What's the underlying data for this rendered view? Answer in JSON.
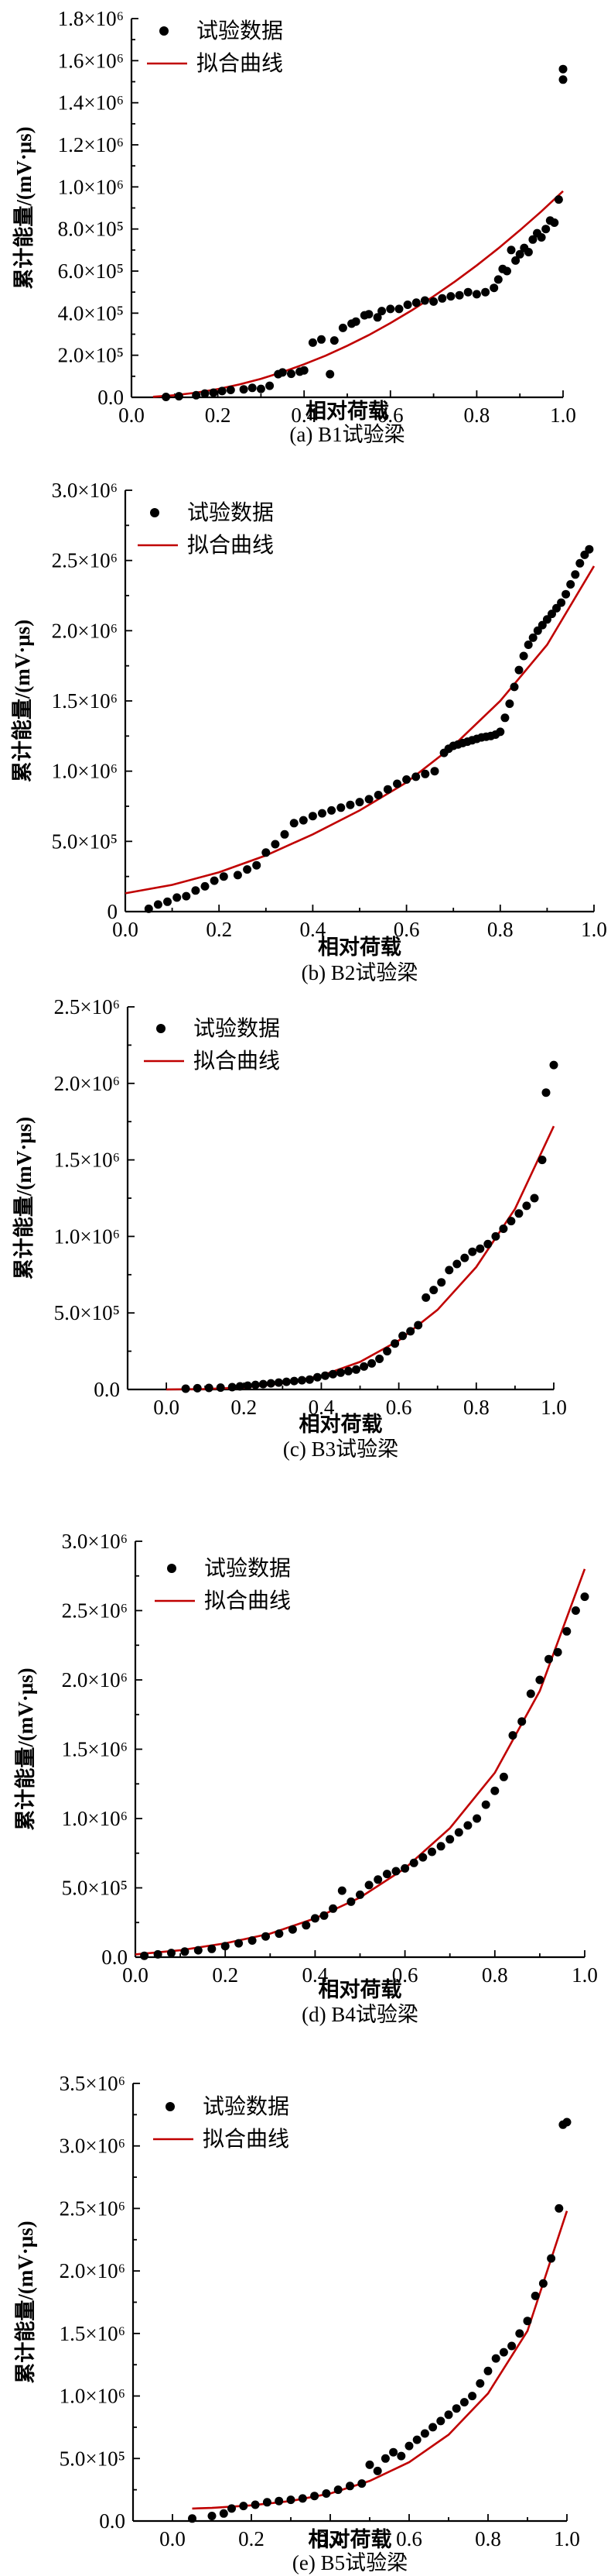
{
  "colors": {
    "points": "#000000",
    "fit": "#c00000",
    "axis": "#000000"
  },
  "chart_data": [
    {
      "type": "scatter",
      "caption": "(a) B1试验梁",
      "xlabel": "相对荷载",
      "ylabel": "累计能量/(mV·μs)",
      "xlim": [
        0.0,
        1.0
      ],
      "ylim": [
        0,
        1800000
      ],
      "xticks": [
        0.0,
        0.2,
        0.4,
        0.6,
        0.8,
        1.0
      ],
      "xtick_labels": [
        "0.0",
        "0.2",
        "0.4",
        "0.6",
        "0.8",
        "1.0"
      ],
      "yticks": [
        0,
        200000,
        400000,
        600000,
        800000,
        1000000,
        1200000,
        1400000,
        1600000,
        1800000
      ],
      "ytick_labels": [
        "0.0",
        "2.0×10⁵",
        "4.0×10⁵",
        "6.0×10⁵",
        "8.0×10⁵",
        "1.0×10⁶",
        "1.2×10⁶",
        "1.4×10⁶",
        "1.6×10⁶",
        "1.8×10⁶"
      ],
      "legend": [
        "试验数据",
        "拟合曲线"
      ],
      "legend_position": "top-left",
      "series": [
        {
          "kind": "points",
          "x": [
            0.08,
            0.11,
            0.15,
            0.17,
            0.19,
            0.21,
            0.23,
            0.26,
            0.28,
            0.3,
            0.32,
            0.34,
            0.35,
            0.37,
            0.39,
            0.4,
            0.42,
            0.44,
            0.46,
            0.47,
            0.49,
            0.51,
            0.52,
            0.54,
            0.55,
            0.57,
            0.58,
            0.6,
            0.62,
            0.64,
            0.66,
            0.68,
            0.7,
            0.72,
            0.74,
            0.76,
            0.78,
            0.8,
            0.82,
            0.84,
            0.85,
            0.86,
            0.87,
            0.88,
            0.89,
            0.9,
            0.91,
            0.92,
            0.93,
            0.94,
            0.95,
            0.96,
            0.97,
            0.98,
            0.99,
            1.0,
            1.0
          ],
          "y": [
            2000,
            5000,
            10000,
            18000,
            22000,
            30000,
            35000,
            38000,
            45000,
            40000,
            55000,
            110000,
            118000,
            112000,
            122000,
            128000,
            260000,
            275000,
            110000,
            270000,
            330000,
            350000,
            360000,
            390000,
            395000,
            380000,
            410000,
            420000,
            420000,
            440000,
            450000,
            460000,
            455000,
            470000,
            480000,
            485000,
            500000,
            490000,
            500000,
            520000,
            560000,
            610000,
            600000,
            700000,
            650000,
            680000,
            710000,
            690000,
            750000,
            780000,
            760000,
            800000,
            840000,
            830000,
            940000,
            1510000,
            1560000
          ]
        },
        {
          "kind": "fit",
          "x": [
            0.05,
            0.1,
            0.15,
            0.2,
            0.25,
            0.3,
            0.35,
            0.4,
            0.45,
            0.5,
            0.55,
            0.6,
            0.65,
            0.7,
            0.75,
            0.8,
            0.85,
            0.9,
            0.95,
            1.0
          ],
          "y": [
            2400,
            9800,
            22000,
            39000,
            61000,
            88000,
            120000,
            157000,
            198000,
            245000,
            296000,
            353000,
            414000,
            480000,
            551000,
            627000,
            708000,
            794000,
            884000,
            980000
          ]
        }
      ]
    },
    {
      "type": "scatter",
      "caption": "(b) B2试验梁",
      "xlabel": "相对荷载",
      "ylabel": "累计能量/(mV·μs)",
      "xlim": [
        0.0,
        1.0
      ],
      "ylim": [
        0,
        3000000
      ],
      "xticks": [
        0.0,
        0.2,
        0.4,
        0.6,
        0.8,
        1.0
      ],
      "xtick_labels": [
        "0.0",
        "0.2",
        "0.4",
        "0.6",
        "0.8",
        "1.0"
      ],
      "yticks": [
        0,
        500000,
        1000000,
        1500000,
        2000000,
        2500000,
        3000000
      ],
      "ytick_labels": [
        "0",
        "5.0×10⁵",
        "1.0×10⁶",
        "1.5×10⁶",
        "2.0×10⁶",
        "2.5×10⁶",
        "3.0×10⁶"
      ],
      "legend": [
        "试验数据",
        "拟合曲线"
      ],
      "legend_position": "top-left",
      "series": [
        {
          "kind": "points",
          "x": [
            0.05,
            0.07,
            0.09,
            0.11,
            0.13,
            0.15,
            0.17,
            0.19,
            0.21,
            0.24,
            0.26,
            0.28,
            0.3,
            0.32,
            0.34,
            0.36,
            0.38,
            0.4,
            0.42,
            0.44,
            0.46,
            0.48,
            0.5,
            0.52,
            0.54,
            0.56,
            0.58,
            0.6,
            0.62,
            0.64,
            0.66,
            0.68,
            0.69,
            0.7,
            0.71,
            0.72,
            0.73,
            0.74,
            0.75,
            0.76,
            0.77,
            0.78,
            0.79,
            0.8,
            0.81,
            0.82,
            0.83,
            0.84,
            0.85,
            0.86,
            0.87,
            0.88,
            0.89,
            0.9,
            0.91,
            0.92,
            0.93,
            0.94,
            0.95,
            0.96,
            0.97,
            0.98,
            0.99
          ],
          "y": [
            20000,
            50000,
            70000,
            100000,
            110000,
            150000,
            180000,
            220000,
            250000,
            260000,
            300000,
            330000,
            420000,
            480000,
            550000,
            630000,
            650000,
            680000,
            700000,
            720000,
            740000,
            760000,
            780000,
            800000,
            830000,
            870000,
            910000,
            940000,
            960000,
            980000,
            1000000,
            1130000,
            1160000,
            1180000,
            1190000,
            1200000,
            1210000,
            1220000,
            1230000,
            1240000,
            1245000,
            1250000,
            1260000,
            1280000,
            1380000,
            1480000,
            1600000,
            1720000,
            1820000,
            1900000,
            1950000,
            2000000,
            2040000,
            2080000,
            2120000,
            2160000,
            2200000,
            2260000,
            2330000,
            2400000,
            2480000,
            2540000,
            2580000
          ]
        },
        {
          "kind": "fit",
          "x": [
            0.0,
            0.1,
            0.2,
            0.3,
            0.4,
            0.5,
            0.6,
            0.7,
            0.8,
            0.9,
            1.0
          ],
          "y": [
            130000,
            190000,
            280000,
            400000,
            550000,
            720000,
            920000,
            1180000,
            1500000,
            1900000,
            2460000
          ]
        }
      ]
    },
    {
      "type": "scatter",
      "caption": "(c) B3试验梁",
      "xlabel": "相对荷载",
      "ylabel": "累计能量/(mV·μs)",
      "xlim": [
        -0.1,
        1.0
      ],
      "ylim": [
        0,
        2500000
      ],
      "xticks": [
        0.0,
        0.2,
        0.4,
        0.6,
        0.8,
        1.0
      ],
      "xtick_labels": [
        "0.0",
        "0.2",
        "0.4",
        "0.6",
        "0.8",
        "1.0"
      ],
      "yticks": [
        0,
        500000,
        1000000,
        1500000,
        2000000,
        2500000
      ],
      "ytick_labels": [
        "0.0",
        "5.0×10⁵",
        "1.0×10⁶",
        "1.5×10⁶",
        "2.0×10⁶",
        "2.5×10⁶"
      ],
      "legend": [
        "试验数据",
        "拟合曲线"
      ],
      "legend_position": "top-left",
      "series": [
        {
          "kind": "points",
          "x": [
            0.05,
            0.08,
            0.11,
            0.14,
            0.17,
            0.19,
            0.21,
            0.23,
            0.25,
            0.27,
            0.29,
            0.31,
            0.33,
            0.35,
            0.37,
            0.39,
            0.41,
            0.43,
            0.45,
            0.47,
            0.49,
            0.51,
            0.53,
            0.55,
            0.57,
            0.59,
            0.61,
            0.63,
            0.65,
            0.67,
            0.69,
            0.71,
            0.73,
            0.75,
            0.77,
            0.79,
            0.81,
            0.83,
            0.85,
            0.87,
            0.89,
            0.91,
            0.93,
            0.95,
            0.97,
            0.98,
            1.0
          ],
          "y": [
            5000,
            8000,
            10000,
            12000,
            15000,
            20000,
            25000,
            30000,
            35000,
            40000,
            45000,
            50000,
            55000,
            60000,
            65000,
            80000,
            90000,
            100000,
            110000,
            120000,
            130000,
            150000,
            170000,
            200000,
            250000,
            300000,
            350000,
            380000,
            420000,
            600000,
            650000,
            700000,
            780000,
            820000,
            860000,
            900000,
            920000,
            950000,
            1000000,
            1050000,
            1100000,
            1150000,
            1200000,
            1250000,
            1500000,
            1940000,
            2120000
          ]
        },
        {
          "kind": "fit",
          "x": [
            0.0,
            0.1,
            0.2,
            0.3,
            0.4,
            0.5,
            0.6,
            0.7,
            0.8,
            0.9,
            1.0
          ],
          "y": [
            0,
            3000,
            12000,
            40000,
            90000,
            180000,
            320000,
            520000,
            800000,
            1180000,
            1720000
          ]
        }
      ]
    },
    {
      "type": "scatter",
      "caption": "(d) B4试验梁",
      "xlabel": "相对荷载",
      "ylabel": "累计能量/(mV·μs)",
      "xlim": [
        0.0,
        1.0
      ],
      "ylim": [
        0,
        3000000
      ],
      "xticks": [
        0.0,
        0.2,
        0.4,
        0.6,
        0.8,
        1.0
      ],
      "xtick_labels": [
        "0.0",
        "0.2",
        "0.4",
        "0.6",
        "0.8",
        "1.0"
      ],
      "yticks": [
        0,
        500000,
        1000000,
        1500000,
        2000000,
        2500000,
        3000000
      ],
      "ytick_labels": [
        "0.0",
        "5.0×10⁵",
        "1.0×10⁶",
        "1.5×10⁶",
        "2.0×10⁶",
        "2.5×10⁶",
        "3.0×10⁶"
      ],
      "legend": [
        "试验数据",
        "拟合曲线"
      ],
      "legend_position": "top-left",
      "series": [
        {
          "kind": "points",
          "x": [
            0.02,
            0.05,
            0.08,
            0.11,
            0.14,
            0.17,
            0.2,
            0.23,
            0.26,
            0.29,
            0.32,
            0.35,
            0.38,
            0.4,
            0.42,
            0.44,
            0.46,
            0.48,
            0.5,
            0.52,
            0.54,
            0.56,
            0.58,
            0.6,
            0.62,
            0.64,
            0.66,
            0.68,
            0.7,
            0.72,
            0.74,
            0.76,
            0.78,
            0.8,
            0.82,
            0.84,
            0.86,
            0.88,
            0.9,
            0.92,
            0.94,
            0.96,
            0.98,
            1.0
          ],
          "y": [
            10000,
            20000,
            30000,
            40000,
            50000,
            60000,
            80000,
            100000,
            120000,
            150000,
            170000,
            200000,
            230000,
            280000,
            300000,
            350000,
            480000,
            400000,
            450000,
            520000,
            560000,
            600000,
            620000,
            640000,
            680000,
            720000,
            760000,
            800000,
            850000,
            900000,
            950000,
            1000000,
            1100000,
            1200000,
            1300000,
            1600000,
            1700000,
            1900000,
            2000000,
            2150000,
            2200000,
            2350000,
            2500000,
            2600000
          ]
        },
        {
          "kind": "fit",
          "x": [
            0.0,
            0.1,
            0.2,
            0.3,
            0.4,
            0.5,
            0.6,
            0.7,
            0.8,
            0.9,
            1.0
          ],
          "y": [
            20000,
            50000,
            100000,
            170000,
            280000,
            430000,
            640000,
            930000,
            1330000,
            1920000,
            2800000
          ]
        }
      ]
    },
    {
      "type": "scatter",
      "caption": "(e) B5试验梁",
      "xlabel": "相对荷载",
      "ylabel": "累计能量/(mV·μs)",
      "xlim": [
        -0.1,
        1.0
      ],
      "ylim": [
        0,
        3500000
      ],
      "xticks": [
        0.0,
        0.2,
        0.4,
        0.6,
        0.8,
        1.0
      ],
      "xtick_labels": [
        "0.0",
        "0.2",
        "0.4",
        "0.6",
        "0.8",
        "1.0"
      ],
      "yticks": [
        0,
        500000,
        1000000,
        1500000,
        2000000,
        2500000,
        3000000,
        3500000
      ],
      "ytick_labels": [
        "0.0",
        "5.0×10⁵",
        "1.0×10⁶",
        "1.5×10⁶",
        "2.0×10⁶",
        "2.5×10⁶",
        "3.0×10⁶",
        "3.5×10⁶"
      ],
      "legend": [
        "试验数据",
        "拟合曲线"
      ],
      "legend_position": "top-left",
      "series": [
        {
          "kind": "points",
          "x": [
            0.05,
            0.1,
            0.13,
            0.15,
            0.18,
            0.21,
            0.24,
            0.27,
            0.3,
            0.33,
            0.36,
            0.39,
            0.42,
            0.45,
            0.48,
            0.5,
            0.52,
            0.54,
            0.56,
            0.58,
            0.6,
            0.62,
            0.64,
            0.66,
            0.68,
            0.7,
            0.72,
            0.74,
            0.76,
            0.78,
            0.8,
            0.82,
            0.84,
            0.86,
            0.88,
            0.9,
            0.92,
            0.94,
            0.96,
            0.98,
            0.99,
            1.0
          ],
          "y": [
            20000,
            40000,
            60000,
            100000,
            120000,
            130000,
            150000,
            160000,
            170000,
            180000,
            200000,
            220000,
            250000,
            280000,
            300000,
            450000,
            400000,
            500000,
            550000,
            520000,
            600000,
            650000,
            700000,
            750000,
            800000,
            850000,
            900000,
            950000,
            1000000,
            1100000,
            1200000,
            1300000,
            1350000,
            1400000,
            1500000,
            1600000,
            1800000,
            1900000,
            2100000,
            2500000,
            3170000,
            3190000
          ]
        },
        {
          "kind": "fit",
          "x": [
            0.05,
            0.1,
            0.2,
            0.3,
            0.4,
            0.5,
            0.6,
            0.7,
            0.8,
            0.9,
            1.0
          ],
          "y": [
            100000,
            105000,
            125000,
            160000,
            220000,
            320000,
            470000,
            690000,
            1020000,
            1520000,
            2480000
          ]
        }
      ]
    }
  ]
}
